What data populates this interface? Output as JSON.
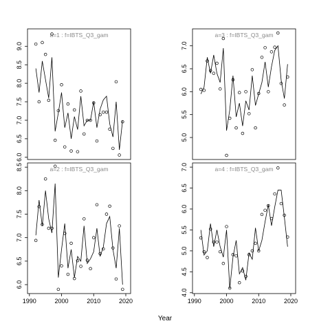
{
  "xlabel": "Year",
  "chart_data": [
    {
      "type": "scatter",
      "title": "a=1  :  f=IBTS_Q3_gam",
      "x": [
        1992,
        1993,
        1994,
        1995,
        1996,
        1997,
        1998,
        1999,
        2000,
        2001,
        2002,
        2003,
        2004,
        2005,
        2006,
        2007,
        2008,
        2009,
        2010,
        2011,
        2012,
        2013,
        2014,
        2015,
        2016,
        2017,
        2018,
        2019
      ],
      "points": [
        9.06,
        7.5,
        9.1,
        8.78,
        7.54,
        9.33,
        6.46,
        7.26,
        7.96,
        6.28,
        7.44,
        6.17,
        7.28,
        6.15,
        7.79,
        6.63,
        7.0,
        7.0,
        7.47,
        6.44,
        7.15,
        7.22,
        7.22,
        6.76,
        6.24,
        8.04,
        6.06,
        6.96
      ],
      "fit": [
        8.4,
        7.75,
        8.6,
        8.1,
        7.6,
        8.7,
        6.7,
        7.2,
        7.75,
        6.8,
        7.2,
        6.5,
        7.1,
        6.75,
        7.65,
        6.85,
        7.0,
        7.0,
        7.5,
        6.8,
        7.3,
        7.55,
        7.65,
        6.9,
        6.55,
        7.5,
        6.2,
        7.0
      ],
      "xlim": [
        1989.4,
        2021.5
      ],
      "ylim": [
        5.94,
        9.47
      ],
      "yticks": [
        {
          "value": 6,
          "label": "6.0"
        },
        6.5,
        {
          "value": 7,
          "label": "7.0"
        },
        7.5,
        {
          "value": 8,
          "label": "8.0"
        },
        8.5,
        {
          "value": 9,
          "label": "9.0"
        }
      ]
    },
    {
      "type": "scatter",
      "title": "a=3  :  f=IBTS_Q3_gam",
      "x": [
        1992,
        1993,
        1994,
        1995,
        1996,
        1997,
        1998,
        1999,
        2000,
        2001,
        2002,
        2003,
        2004,
        2005,
        2006,
        2007,
        2008,
        2009,
        2010,
        2011,
        2012,
        2013,
        2014,
        2015,
        2016,
        2017,
        2018,
        2019
      ],
      "points": [
        6.05,
        6.03,
        6.67,
        6.46,
        6.4,
        6.62,
        6.06,
        7.16,
        4.61,
        5.42,
        6.26,
        5.21,
        5.98,
        5.09,
        6.0,
        5.52,
        6.48,
        5.21,
        5.96,
        6.75,
        6.96,
        6.0,
        6.87,
        6.97,
        7.28,
        6.18,
        5.71,
        6.32
      ],
      "fit": [
        5.95,
        6.1,
        6.75,
        6.4,
        6.8,
        6.4,
        6.2,
        6.95,
        5.15,
        5.6,
        6.35,
        5.45,
        5.75,
        5.25,
        5.8,
        5.6,
        6.35,
        5.7,
        5.95,
        6.2,
        6.65,
        6.1,
        6.55,
        6.9,
        7.0,
        6.25,
        5.85,
        6.6
      ],
      "xlim": [
        1989.4,
        2021.5
      ],
      "ylim": [
        4.52,
        7.37
      ],
      "yticks": [
        {
          "value": 5,
          "label": "5.0"
        },
        5.5,
        {
          "value": 6,
          "label": "6.0"
        },
        6.5,
        {
          "value": 7,
          "label": "7.0"
        }
      ]
    },
    {
      "type": "scatter",
      "title": "a=2  :  f=IBTS_Q3_gam",
      "x": [
        1992,
        1993,
        1994,
        1995,
        1996,
        1997,
        1998,
        1999,
        2000,
        2001,
        2002,
        2003,
        2004,
        2005,
        2006,
        2007,
        2008,
        2009,
        2010,
        2011,
        2012,
        2013,
        2014,
        2015,
        2016,
        2017,
        2018,
        2019
      ],
      "points": [
        6.94,
        7.66,
        7.28,
        8.25,
        7.2,
        7.2,
        8.52,
        5.9,
        6.4,
        7.09,
        6.22,
        6.88,
        6.13,
        6.51,
        6.39,
        7.4,
        6.52,
        6.34,
        7.0,
        7.7,
        6.66,
        6.76,
        7.5,
        7.67,
        6.78,
        6.12,
        7.25,
        5.9
      ],
      "fit": [
        7.05,
        7.8,
        7.25,
        8.0,
        7.4,
        7.1,
        8.15,
        6.15,
        6.75,
        7.3,
        6.35,
        6.75,
        6.15,
        6.6,
        6.5,
        7.25,
        6.45,
        6.55,
        6.7,
        7.2,
        6.6,
        6.8,
        7.3,
        7.45,
        6.75,
        6.35,
        7.2,
        6.0
      ],
      "xlim": [
        1989.4,
        2021.5
      ],
      "ylim": [
        5.81,
        8.59
      ],
      "xticks": [
        1990,
        2000,
        2010,
        2020
      ],
      "yticks": [
        {
          "value": 6,
          "label": "6.0"
        },
        6.5,
        {
          "value": 7,
          "label": "7.0"
        },
        7.5,
        {
          "value": 8,
          "label": "8.0"
        },
        8.5
      ]
    },
    {
      "type": "scatter",
      "title": "a=4  :  f=IBTS_Q3_gam",
      "x": [
        1992,
        1993,
        1994,
        1995,
        1996,
        1997,
        1998,
        1999,
        2000,
        2001,
        2002,
        2003,
        2004,
        2005,
        2006,
        2007,
        2008,
        2009,
        2010,
        2011,
        2012,
        2013,
        2014,
        2015,
        2016,
        2017,
        2018,
        2019
      ],
      "points": [
        5.31,
        4.98,
        4.84,
        5.52,
        5.21,
        5.21,
        4.98,
        4.7,
        5.58,
        4.11,
        4.91,
        4.88,
        4.24,
        4.52,
        4.39,
        4.91,
        5.0,
        5.18,
        5.0,
        5.87,
        5.97,
        6.08,
        5.77,
        6.36,
        6.98,
        6.13,
        5.85,
        5.33
      ],
      "fit": [
        5.5,
        4.9,
        5.0,
        5.65,
        5.1,
        5.5,
        5.1,
        4.85,
        5.5,
        4.1,
        4.85,
        5.25,
        4.45,
        4.6,
        4.3,
        4.95,
        4.8,
        5.55,
        5.0,
        5.25,
        5.7,
        6.1,
        5.6,
        6.05,
        6.45,
        6.45,
        5.8,
        5.1
      ],
      "xlim": [
        1989.4,
        2021.5
      ],
      "ylim": [
        3.98,
        7.1
      ],
      "xticks": [
        1990,
        2000,
        2010,
        2020
      ],
      "yticks": [
        {
          "value": 4,
          "label": "4.0"
        },
        4.5,
        {
          "value": 5,
          "label": "5.0"
        },
        5.5,
        {
          "value": 6,
          "label": "6.0"
        },
        6.5,
        {
          "value": 7,
          "label": "7.0"
        }
      ]
    }
  ]
}
